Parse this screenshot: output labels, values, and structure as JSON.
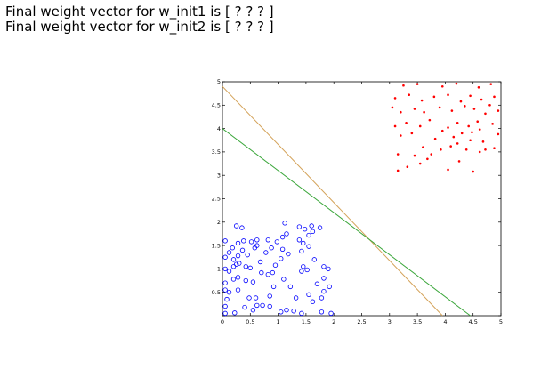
{
  "text_lines": [
    "Final weight vector for w_init1 is [ ? ? ? ]",
    "Final weight vector for w_init2 is [ ? ? ? ]"
  ],
  "colors": {
    "class1": "#0000ff",
    "class2": "#ff0000",
    "line1": "#d4a35a",
    "line2": "#3aa63a",
    "axes": "#000000"
  },
  "chart_data": {
    "type": "scatter",
    "title": "",
    "xlabel": "",
    "ylabel": "",
    "xlim": [
      0,
      5
    ],
    "ylim": [
      0,
      5
    ],
    "grid": false,
    "legend": "none",
    "x_ticks": [
      "0",
      "0.5",
      "1",
      "1.5",
      "2",
      "2.5",
      "3",
      "3.5",
      "4",
      "4.5",
      "5"
    ],
    "y_ticks": [
      "0",
      "0.5",
      "1",
      "1.5",
      "2",
      "2.5",
      "3",
      "3.5",
      "4",
      "4.5",
      "5"
    ],
    "series": [
      {
        "marker": "circle-open",
        "color": "#0000ff",
        "points": [
          [
            0.05,
            0.05
          ],
          [
            0.22,
            0.06
          ],
          [
            0.4,
            0.18
          ],
          [
            0.55,
            0.12
          ],
          [
            0.62,
            0.22
          ],
          [
            0.72,
            0.22
          ],
          [
            0.85,
            0.2
          ],
          [
            1.05,
            0.08
          ],
          [
            1.15,
            0.12
          ],
          [
            1.28,
            0.1
          ],
          [
            1.42,
            0.05
          ],
          [
            1.78,
            0.08
          ],
          [
            1.95,
            0.05
          ],
          [
            0.05,
            0.2
          ],
          [
            0.08,
            0.35
          ],
          [
            0.05,
            0.55
          ],
          [
            0.12,
            0.5
          ],
          [
            0.28,
            0.55
          ],
          [
            0.48,
            0.38
          ],
          [
            0.6,
            0.38
          ],
          [
            0.85,
            0.42
          ],
          [
            1.32,
            0.38
          ],
          [
            1.55,
            0.45
          ],
          [
            1.62,
            0.3
          ],
          [
            1.78,
            0.38
          ],
          [
            1.82,
            0.52
          ],
          [
            0.05,
            0.7
          ],
          [
            0.2,
            0.78
          ],
          [
            0.28,
            0.82
          ],
          [
            0.42,
            0.75
          ],
          [
            0.55,
            0.72
          ],
          [
            0.7,
            0.92
          ],
          [
            0.82,
            0.88
          ],
          [
            0.9,
            0.92
          ],
          [
            1.1,
            0.78
          ],
          [
            1.42,
            0.95
          ],
          [
            1.52,
            0.98
          ],
          [
            1.82,
            0.8
          ],
          [
            1.92,
            0.62
          ],
          [
            0.05,
            1.0
          ],
          [
            0.12,
            0.95
          ],
          [
            0.2,
            1.05
          ],
          [
            0.25,
            1.1
          ],
          [
            0.3,
            1.12
          ],
          [
            0.42,
            1.05
          ],
          [
            0.5,
            1.02
          ],
          [
            0.68,
            1.15
          ],
          [
            0.95,
            1.08
          ],
          [
            1.05,
            1.22
          ],
          [
            1.45,
            1.05
          ],
          [
            1.82,
            1.05
          ],
          [
            1.9,
            1.0
          ],
          [
            0.05,
            1.25
          ],
          [
            0.12,
            1.35
          ],
          [
            0.2,
            1.2
          ],
          [
            0.28,
            1.28
          ],
          [
            0.36,
            1.4
          ],
          [
            0.45,
            1.3
          ],
          [
            0.58,
            1.45
          ],
          [
            0.78,
            1.35
          ],
          [
            0.88,
            1.45
          ],
          [
            1.08,
            1.42
          ],
          [
            1.18,
            1.32
          ],
          [
            1.42,
            1.38
          ],
          [
            1.55,
            1.48
          ],
          [
            0.05,
            1.6
          ],
          [
            0.28,
            1.55
          ],
          [
            0.38,
            1.6
          ],
          [
            0.52,
            1.58
          ],
          [
            0.62,
            1.62
          ],
          [
            0.82,
            1.62
          ],
          [
            0.98,
            1.58
          ],
          [
            1.08,
            1.68
          ],
          [
            1.15,
            1.75
          ],
          [
            1.38,
            1.62
          ],
          [
            1.45,
            1.55
          ],
          [
            1.55,
            1.72
          ],
          [
            1.62,
            1.8
          ],
          [
            0.25,
            1.92
          ],
          [
            0.35,
            1.88
          ],
          [
            1.38,
            1.9
          ],
          [
            1.48,
            1.85
          ],
          [
            1.6,
            1.92
          ],
          [
            1.75,
            1.88
          ],
          [
            1.12,
            1.98
          ],
          [
            0.62,
            1.5
          ],
          [
            0.18,
            1.45
          ],
          [
            1.65,
            1.2
          ],
          [
            0.92,
            0.62
          ],
          [
            1.22,
            0.62
          ],
          [
            1.7,
            0.68
          ]
        ]
      },
      {
        "marker": "dot",
        "color": "#ff0000",
        "points": [
          [
            3.15,
            3.1
          ],
          [
            3.32,
            3.18
          ],
          [
            3.55,
            3.25
          ],
          [
            3.75,
            3.45
          ],
          [
            4.05,
            3.12
          ],
          [
            4.25,
            3.3
          ],
          [
            4.5,
            3.08
          ],
          [
            4.62,
            3.5
          ],
          [
            4.72,
            3.55
          ],
          [
            3.15,
            3.45
          ],
          [
            3.45,
            3.42
          ],
          [
            3.6,
            3.6
          ],
          [
            3.92,
            3.55
          ],
          [
            4.1,
            3.62
          ],
          [
            4.22,
            3.68
          ],
          [
            4.45,
            3.75
          ],
          [
            4.68,
            3.72
          ],
          [
            4.88,
            3.58
          ],
          [
            3.2,
            3.85
          ],
          [
            3.4,
            3.9
          ],
          [
            3.82,
            3.78
          ],
          [
            3.95,
            3.95
          ],
          [
            4.15,
            3.82
          ],
          [
            4.3,
            3.9
          ],
          [
            4.48,
            3.92
          ],
          [
            4.62,
            3.98
          ],
          [
            4.95,
            3.88
          ],
          [
            3.1,
            4.05
          ],
          [
            3.3,
            4.12
          ],
          [
            3.55,
            4.05
          ],
          [
            3.72,
            4.18
          ],
          [
            4.05,
            4.02
          ],
          [
            4.22,
            4.12
          ],
          [
            4.42,
            4.05
          ],
          [
            4.58,
            4.15
          ],
          [
            4.85,
            4.1
          ],
          [
            3.2,
            4.35
          ],
          [
            3.45,
            4.42
          ],
          [
            3.62,
            4.35
          ],
          [
            3.9,
            4.45
          ],
          [
            4.12,
            4.38
          ],
          [
            4.35,
            4.48
          ],
          [
            4.52,
            4.42
          ],
          [
            4.72,
            4.32
          ],
          [
            4.95,
            4.38
          ],
          [
            3.1,
            4.65
          ],
          [
            3.35,
            4.72
          ],
          [
            3.58,
            4.6
          ],
          [
            3.8,
            4.68
          ],
          [
            4.05,
            4.72
          ],
          [
            4.28,
            4.58
          ],
          [
            4.45,
            4.7
          ],
          [
            4.65,
            4.62
          ],
          [
            4.88,
            4.68
          ],
          [
            3.25,
            4.92
          ],
          [
            3.5,
            4.95
          ],
          [
            3.95,
            4.9
          ],
          [
            4.2,
            4.96
          ],
          [
            4.6,
            4.88
          ],
          [
            4.82,
            4.95
          ],
          [
            3.05,
            4.45
          ],
          [
            4.38,
            3.55
          ],
          [
            3.68,
            3.35
          ],
          [
            4.8,
            4.5
          ]
        ]
      }
    ],
    "lines": [
      {
        "color": "#d4a35a",
        "from": [
          0,
          4.9
        ],
        "to": [
          3.95,
          0
        ]
      },
      {
        "color": "#3aa63a",
        "from": [
          0,
          4.0
        ],
        "to": [
          4.45,
          0
        ]
      }
    ]
  }
}
